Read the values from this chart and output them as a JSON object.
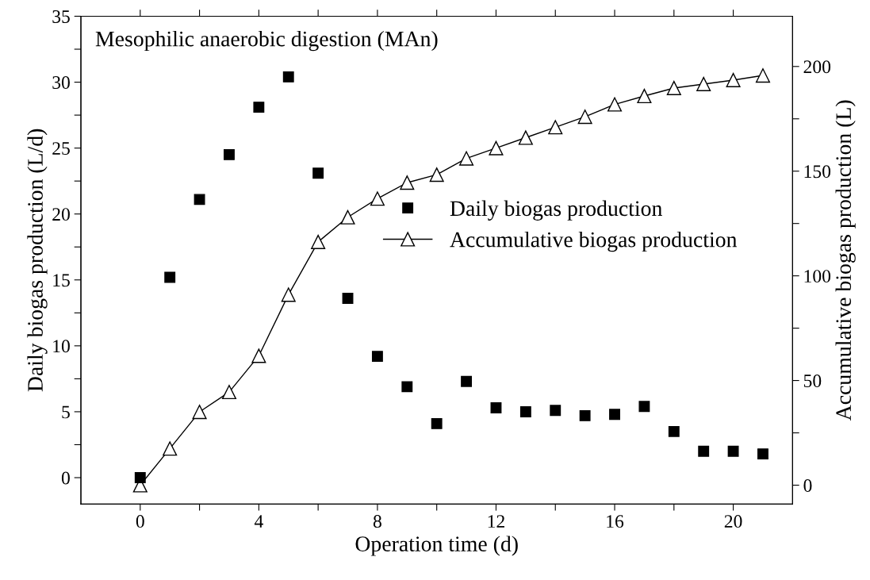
{
  "chart_data": {
    "type": "scatter",
    "title": "Mesophilic anaerobic digestion (MAn)",
    "xlabel": "Operation time (d)",
    "ylabel": "Daily biogas production (L/d)",
    "y2label": "Accumulative biogas production (L)",
    "x": [
      0,
      1,
      2,
      3,
      4,
      5,
      6,
      7,
      8,
      9,
      10,
      11,
      12,
      13,
      14,
      15,
      16,
      17,
      18,
      19,
      20,
      21
    ],
    "series": [
      {
        "name": "Daily biogas production",
        "marker": "square",
        "color": "#000000",
        "values": [
          0,
          15.2,
          21.1,
          24.5,
          28.1,
          30.4,
          23.1,
          13.6,
          9.2,
          6.9,
          4.1,
          7.3,
          5.3,
          5.0,
          5.1,
          4.7,
          4.8,
          5.4,
          3.5,
          2.0,
          2.0,
          1.8
        ]
      },
      {
        "name": "Accumulative biogas production",
        "type": "line",
        "marker": "triangle",
        "axis": "y2",
        "color": "#000000",
        "values": [
          0,
          17.5,
          35,
          44.5,
          61.8,
          91,
          116.2,
          128,
          136.9,
          144.5,
          148.3,
          156.1,
          161,
          166,
          171,
          176,
          181.9,
          185.9,
          189.7,
          191.6,
          193.5,
          195.7
        ]
      }
    ],
    "xlim": [
      -2,
      22
    ],
    "xticks": [
      0,
      {
        "value": 2,
        "label": null
      },
      4,
      {
        "value": 6,
        "label": null
      },
      8,
      {
        "value": 10,
        "label": null
      },
      12,
      {
        "value": 14,
        "label": null
      },
      16,
      {
        "value": 18,
        "label": null
      },
      20
    ],
    "ylim": [
      -2,
      35
    ],
    "yticks": [
      0,
      {
        "value": 2.5,
        "label": null
      },
      5,
      {
        "value": 7.5,
        "label": null
      },
      10,
      {
        "value": 12.5,
        "label": null
      },
      15,
      {
        "value": 17.5,
        "label": null
      },
      20,
      {
        "value": 22.5,
        "label": null
      },
      25,
      {
        "value": 27.5,
        "label": null
      },
      30,
      {
        "value": 32.5,
        "label": null
      },
      35
    ],
    "y2lim": [
      -9,
      224
    ],
    "y2ticks": [
      0,
      {
        "value": 25,
        "label": null
      },
      50,
      {
        "value": 75,
        "label": null
      },
      100,
      {
        "value": 125,
        "label": null
      },
      150,
      {
        "value": 175,
        "label": null
      },
      200
    ],
    "legend": "right",
    "grid": false
  }
}
